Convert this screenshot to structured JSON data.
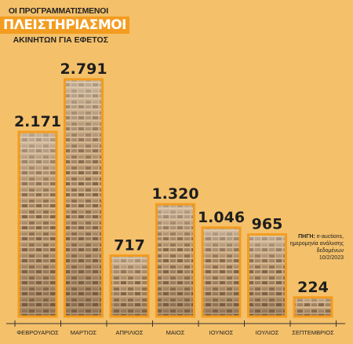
{
  "title": {
    "line1": "ΟΙ ΠΡΟΓΡΑΜΜΑΤΙΣΜΕΝΟΙ",
    "line2": "ΠΛΕΙΣΤΗΡΙΑΣΜΟΙ",
    "line3": "ΑΚΙΝΗΤΩΝ ΓΙΑ ΕΦΕΤΟΣ"
  },
  "source": {
    "label": "ΠΗΓΗ:",
    "text": "e-auctions, ημερομηνία ανάλυσης δεδομένων",
    "date": "10/2/2023"
  },
  "colors": {
    "background": "#f4c06a",
    "bar_outline": "#f39c1f",
    "title_highlight": "#f39c1f",
    "text": "#1e1e1e"
  },
  "chart_data": {
    "type": "bar",
    "categories": [
      "ΦΕΒΡΟΥΑΡΙΟΣ",
      "ΜΑΡΤΙΟΣ",
      "ΑΠΡΙΛΙΟΣ",
      "ΜΑΙΟΣ",
      "ΙΟΥΝΙΟΣ",
      "ΙΟΥΛΙΟΣ",
      "ΣΕΠΤΕΜΒΡΙΟΣ"
    ],
    "values": [
      2171,
      2791,
      717,
      1320,
      1046,
      965,
      224
    ],
    "value_labels": [
      "2.171",
      "2.791",
      "717",
      "1.320",
      "1.046",
      "965",
      "224"
    ],
    "ylim": [
      0,
      2791
    ],
    "grid": false,
    "legend": "none"
  }
}
